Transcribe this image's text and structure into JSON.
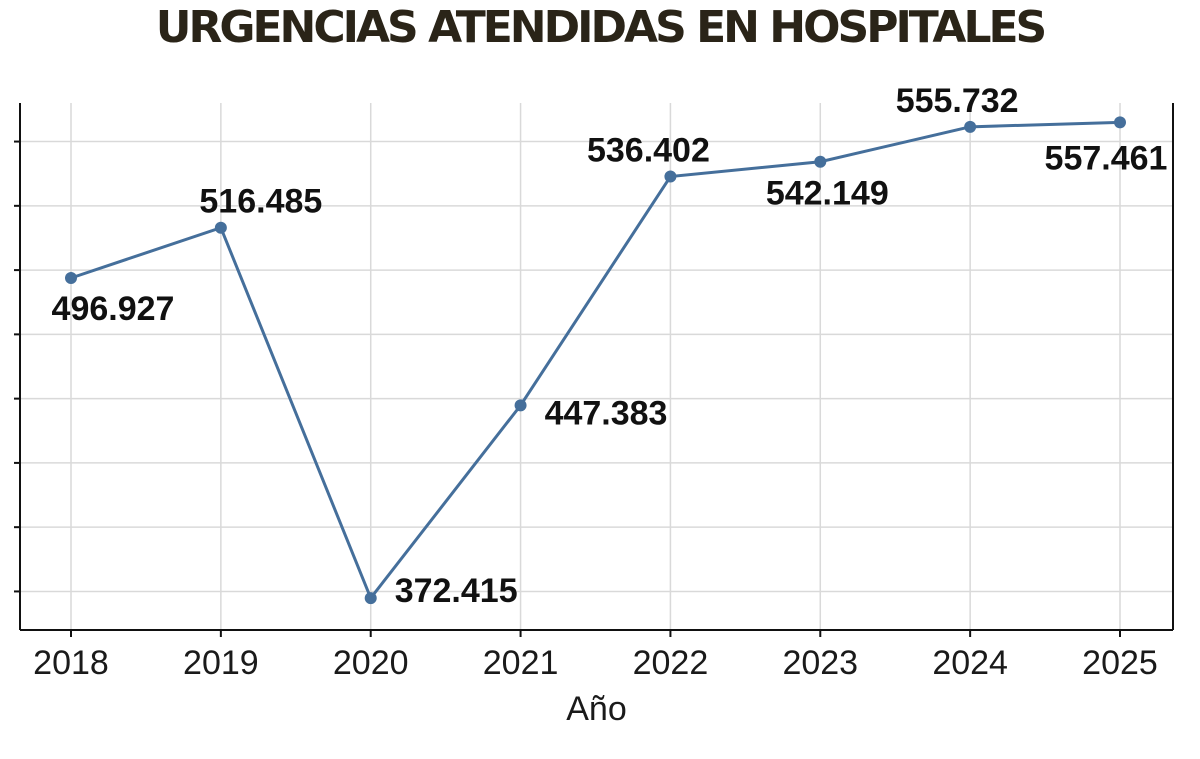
{
  "title": "URGENCIAS ATENDIDAS EN HOSPITALES",
  "chart_data": {
    "type": "line",
    "title": "URGENCIAS ATENDIDAS EN HOSPITALES",
    "xlabel": "Año",
    "ylabel": "",
    "categories": [
      "2018",
      "2019",
      "2020",
      "2021",
      "2022",
      "2023",
      "2024",
      "2025"
    ],
    "series": [
      {
        "values": [
          496927,
          516485,
          372415,
          447383,
          536402,
          542149,
          555732,
          557461
        ],
        "data_labels": [
          "496.927",
          "516.485",
          "372.415",
          "447.383",
          "536.402",
          "542.149",
          "555.732",
          "557.461"
        ]
      }
    ],
    "ylim": [
      360000,
      565000
    ],
    "y_gridlines": [
      375000,
      400000,
      425000,
      450000,
      475000,
      500000,
      525000,
      550000
    ],
    "y_tick_labels_shown": false,
    "grid": true,
    "colors": {
      "line": "#456f9b",
      "marker": "#456f9b",
      "grid": "#d9d9d9",
      "title": "#2a2418"
    }
  }
}
